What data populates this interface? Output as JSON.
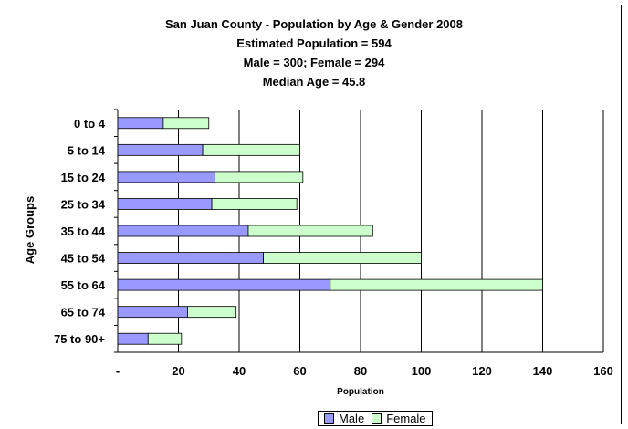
{
  "chart_data": {
    "type": "bar",
    "orientation": "horizontal",
    "stacked": true,
    "title": "San Juan County - Population by Age & Gender 2008",
    "subtitles": [
      "Estimated Population = 594",
      "Male = 300; Female = 294",
      "Median Age = 45.8"
    ],
    "xlabel": "Population",
    "ylabel": "Age Groups",
    "categories": [
      "0 to 4",
      "5 to 14",
      "15 to 24",
      "25 to 34",
      "35 to 44",
      "45 to 54",
      "55 to 64",
      "65 to 74",
      "75 to 90+"
    ],
    "x_ticks": [
      "-",
      "20",
      "40",
      "60",
      "80",
      "100",
      "120",
      "140",
      "160"
    ],
    "xlim": [
      0,
      160
    ],
    "grid": "vertical",
    "legend_position": "bottom",
    "series": [
      {
        "name": "Male",
        "color": "#9999ff",
        "values": [
          15,
          28,
          32,
          31,
          43,
          48,
          70,
          23,
          10
        ]
      },
      {
        "name": "Female",
        "color": "#ccffcc",
        "values": [
          15,
          32,
          29,
          28,
          41,
          52,
          70,
          16,
          11
        ]
      }
    ]
  }
}
